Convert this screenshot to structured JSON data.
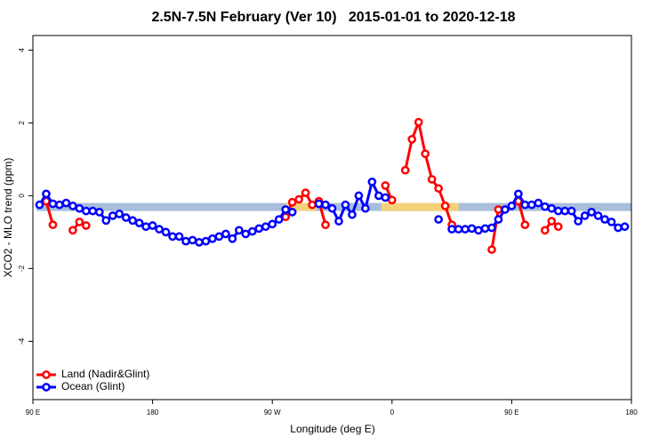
{
  "chart_data": {
    "type": "line",
    "title": "2.5N-7.5N February (Ver 10)   2015-01-01 to 2020-12-18",
    "xlabel": "Longitude (deg E)",
    "ylabel": "XCO2 - MLO trend (ppm)",
    "xlim": [
      90,
      540
    ],
    "xticks": [
      {
        "value": 90,
        "label": "90 E"
      },
      180,
      {
        "value": 270,
        "label": "90 W"
      },
      {
        "value": 360,
        "label": "0"
      },
      {
        "value": 450,
        "label": "90 E"
      },
      {
        "value": 540,
        "label": "180"
      }
    ],
    "ylim": [
      -5.6,
      4.4
    ],
    "yticks": [
      -4,
      -2,
      0,
      2,
      4
    ],
    "legend": "bottom-left",
    "bands": [
      {
        "x": [
          92.5,
          540
        ],
        "y": [
          -0.42,
          -0.2
        ],
        "color": "#a8bedc"
      },
      {
        "x": [
          280,
          303
        ],
        "y": [
          -0.42,
          -0.2
        ],
        "color": "#f5d27a"
      },
      {
        "x": [
          352,
          410
        ],
        "y": [
          -0.42,
          -0.2
        ],
        "color": "#f5d27a"
      }
    ],
    "x": [
      95,
      100,
      105,
      110,
      115,
      120,
      125,
      130,
      135,
      140,
      145,
      150,
      155,
      160,
      165,
      170,
      175,
      180,
      185,
      190,
      195,
      200,
      205,
      210,
      215,
      220,
      225,
      230,
      235,
      240,
      245,
      250,
      255,
      260,
      265,
      270,
      275,
      280,
      285,
      290,
      295,
      300,
      305,
      310,
      315,
      320,
      325,
      330,
      335,
      340,
      345,
      350,
      355,
      360,
      365,
      370,
      375,
      380,
      385,
      390,
      395,
      400,
      405,
      410,
      415,
      420,
      425,
      430,
      435,
      440,
      445,
      450,
      455,
      460,
      465,
      470,
      475,
      480,
      485,
      490,
      495,
      500,
      505,
      510,
      515,
      520,
      525,
      530,
      535
    ],
    "series": [
      {
        "name": "Land (Nadir&Glint)",
        "color": "#ff0000",
        "values": [
          null,
          -0.15,
          -0.8,
          null,
          null,
          -0.95,
          -0.72,
          -0.82,
          null,
          null,
          null,
          null,
          null,
          null,
          null,
          null,
          null,
          null,
          null,
          null,
          null,
          null,
          null,
          null,
          null,
          null,
          null,
          null,
          null,
          null,
          null,
          null,
          null,
          null,
          null,
          null,
          null,
          -0.58,
          -0.18,
          -0.1,
          0.08,
          -0.25,
          -0.15,
          -0.8,
          null,
          null,
          null,
          null,
          null,
          null,
          null,
          null,
          0.28,
          -0.12,
          null,
          0.7,
          1.55,
          2.02,
          1.15,
          0.45,
          0.2,
          -0.28,
          -0.8,
          null,
          null,
          null,
          null,
          null,
          -1.48,
          -0.38,
          null,
          null,
          -0.15,
          -0.8,
          null,
          null,
          -0.95,
          -0.7,
          -0.85,
          null,
          null,
          null,
          null,
          null,
          null,
          null,
          null,
          null,
          null
        ]
      },
      {
        "name": "Ocean (Glint)",
        "color": "#0000ff",
        "values": [
          -0.25,
          0.05,
          -0.22,
          -0.25,
          -0.2,
          -0.28,
          -0.35,
          -0.42,
          -0.42,
          -0.45,
          -0.68,
          -0.55,
          -0.5,
          -0.6,
          -0.68,
          -0.75,
          -0.85,
          -0.82,
          -0.92,
          -1.0,
          -1.12,
          -1.12,
          -1.25,
          -1.22,
          -1.28,
          -1.25,
          -1.18,
          -1.12,
          -1.05,
          -1.18,
          -0.95,
          -1.05,
          -0.98,
          -0.9,
          -0.85,
          -0.78,
          -0.65,
          -0.38,
          -0.45,
          null,
          null,
          null,
          -0.22,
          -0.25,
          -0.35,
          -0.7,
          -0.25,
          -0.52,
          0.0,
          -0.35,
          0.38,
          0.0,
          -0.05,
          null,
          null,
          null,
          null,
          null,
          null,
          null,
          -0.65,
          null,
          -0.92,
          -0.92,
          -0.92,
          -0.9,
          -0.95,
          -0.9,
          -0.88,
          -0.65,
          -0.38,
          -0.28,
          0.05,
          -0.25,
          -0.25,
          -0.2,
          -0.3,
          -0.35,
          -0.42,
          -0.42,
          -0.42,
          -0.7,
          -0.55,
          -0.45,
          -0.55,
          -0.65,
          -0.72,
          -0.88,
          -0.85
        ]
      }
    ]
  }
}
